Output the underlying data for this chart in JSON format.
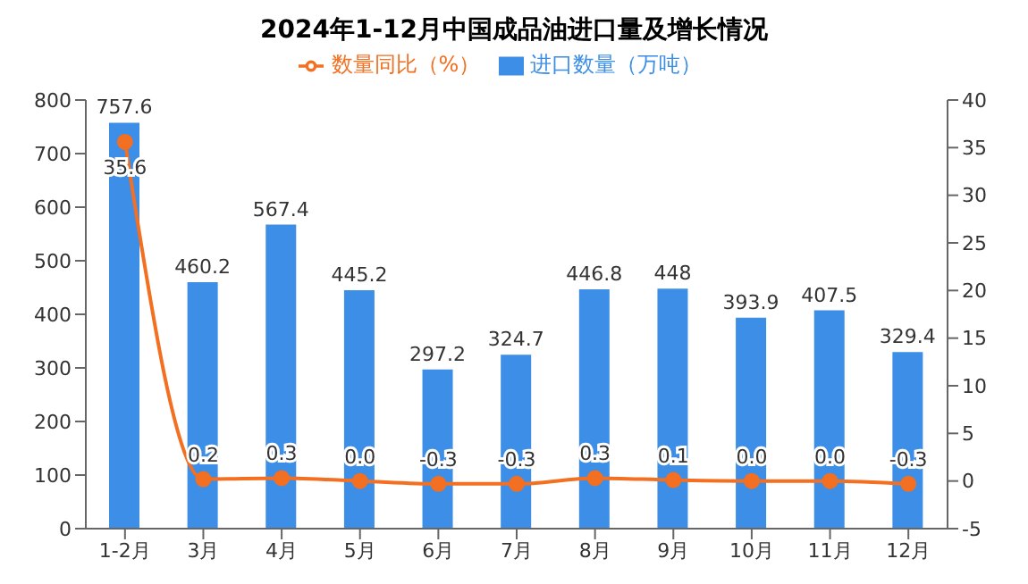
{
  "chart_data": {
    "type": "bar",
    "title": "2024年1-12月中国成品油进口量及增长情况",
    "categories": [
      "1-2月",
      "3月",
      "4月",
      "5月",
      "6月",
      "7月",
      "8月",
      "9月",
      "10月",
      "11月",
      "12月"
    ],
    "series": [
      {
        "name": "进口数量（万吨）",
        "color": "#3d8ee6",
        "values": [
          757.6,
          460.2,
          567.4,
          445.2,
          297.2,
          324.7,
          446.8,
          448,
          393.9,
          407.5,
          329.4
        ],
        "value_labels": [
          "757.6",
          "460.2",
          "567.4",
          "445.2",
          "297.2",
          "324.7",
          "446.8",
          "448",
          "393.9",
          "407.5",
          "329.4"
        ]
      },
      {
        "name": "数量同比（%）",
        "type": "line",
        "axis": "y2",
        "color": "#f36f21",
        "values": [
          35.6,
          0.2,
          0.3,
          0.0,
          -0.3,
          -0.3,
          0.3,
          0.1,
          0.0,
          0.0,
          -0.3
        ],
        "value_labels": [
          "35.6",
          "0.2",
          "0.3",
          "0.0",
          "-0.3",
          "-0.3",
          "0.3",
          "0.1",
          "0.0",
          "0.0",
          "-0.3"
        ]
      }
    ],
    "ylim": [
      0,
      800
    ],
    "yticks": [
      0,
      100,
      200,
      300,
      400,
      500,
      600,
      700,
      800
    ],
    "y2lim": [
      -5,
      40
    ],
    "y2ticks": [
      -5,
      0,
      5,
      10,
      15,
      20,
      25,
      30,
      35,
      40
    ],
    "legend": "top",
    "marker": "circle"
  }
}
